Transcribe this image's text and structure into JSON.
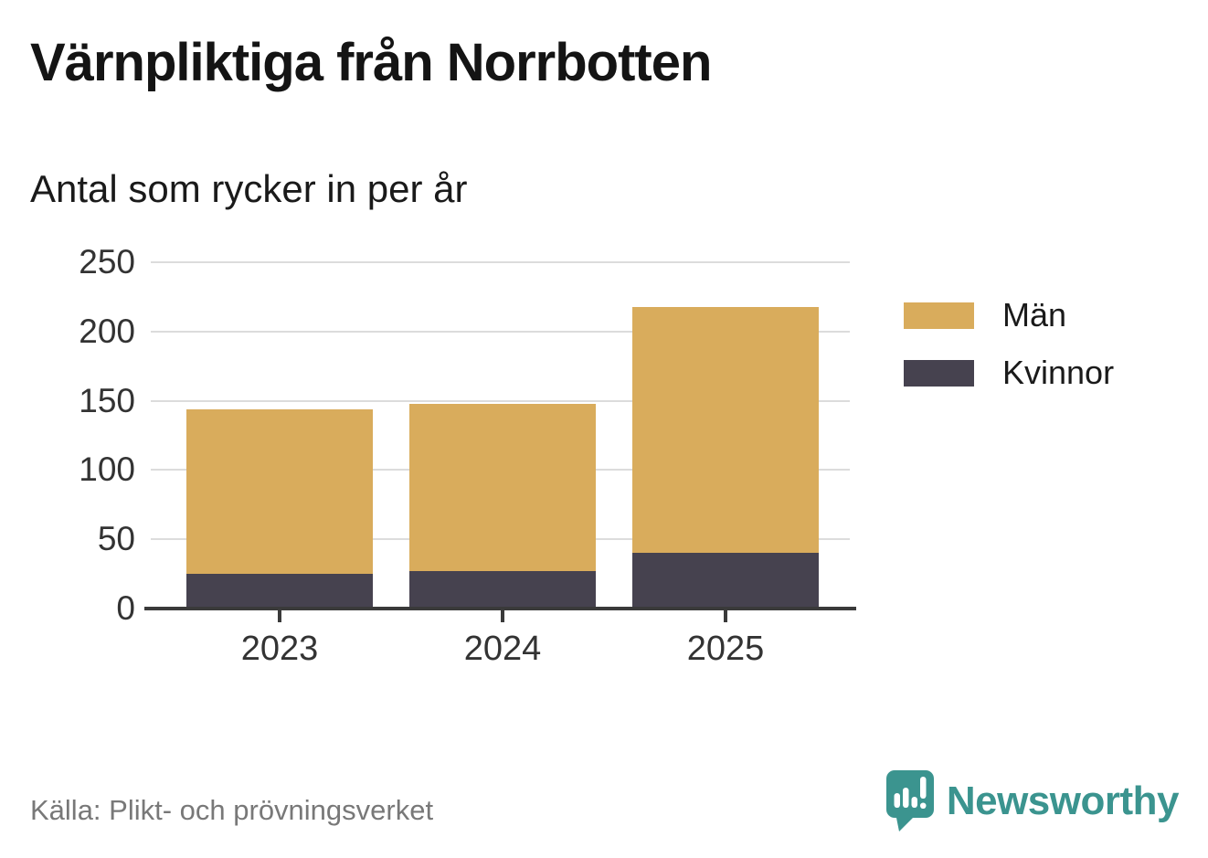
{
  "title": "Värnpliktiga från Norrbotten",
  "subtitle": "Antal som rycker in per år",
  "source": "Källa: Plikt- och prövningsverket",
  "brand": {
    "name": "Newsworthy",
    "color": "#3B948F"
  },
  "colors": {
    "men": "#D9AC5C",
    "women": "#46424F",
    "gridline": "#DCDCDC",
    "axis": "#3A3A3A",
    "title_text": "#141414",
    "tick_label_text": "#333333",
    "source_text": "#787878",
    "brand_teal": "#3B948F"
  },
  "legend": {
    "items": [
      {
        "label": "Män",
        "color": "#D9AC5C"
      },
      {
        "label": "Kvinnor",
        "color": "#46424F"
      }
    ]
  },
  "chart_data": {
    "type": "bar",
    "stacked": true,
    "title": "Värnpliktiga från Norrbotten",
    "subtitle": "Antal som rycker in per år",
    "categories": [
      "2023",
      "2024",
      "2025"
    ],
    "series": [
      {
        "name": "Män",
        "color": "#D9AC5C",
        "values": [
          119,
          121,
          178
        ]
      },
      {
        "name": "Kvinnor",
        "color": "#46424F",
        "values": [
          25,
          27,
          40
        ]
      }
    ],
    "totals": [
      144,
      148,
      218
    ],
    "xlabel": "",
    "ylabel": "",
    "ylim": [
      0,
      250
    ],
    "yticks": [
      0,
      50,
      100,
      150,
      200,
      250
    ],
    "grid": "horizontal",
    "legend_position": "right"
  }
}
